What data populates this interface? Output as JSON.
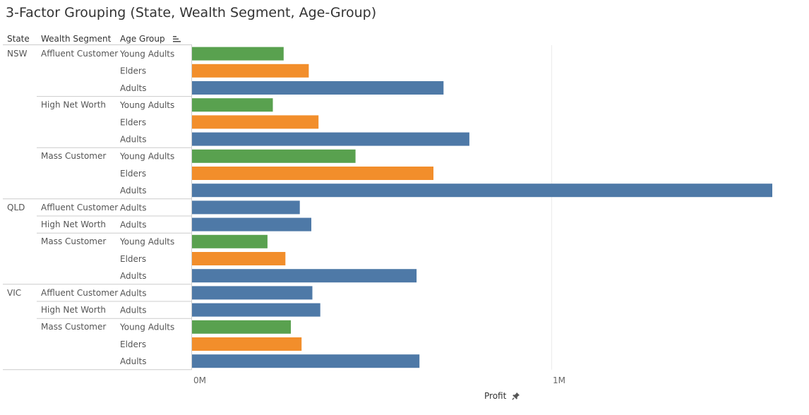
{
  "title": "3-Factor Grouping (State, Wealth Segment, Age-Group)",
  "headers": {
    "state": "State",
    "wealth_segment": "Wealth Segment",
    "age_group": "Age Group"
  },
  "icons": {
    "sort": "sort-descending-icon",
    "pin": "pin-icon"
  },
  "colors": {
    "Young Adults": "#59a14f",
    "Elders": "#f28e2b",
    "Adults": "#4e79a7"
  },
  "chart_data": {
    "type": "bar",
    "orientation": "horizontal",
    "xlabel": "Profit",
    "xlim": [
      0,
      1.65
    ],
    "x_unit": "M",
    "ticks": [
      {
        "value": 0,
        "label": "0M"
      },
      {
        "value": 1,
        "label": "1M"
      }
    ],
    "grid": true,
    "groups": [
      {
        "state": "NSW",
        "segments": [
          {
            "segment": "Affluent Customer",
            "bars": [
              {
                "age_group": "Young Adults",
                "value": 0.255
              },
              {
                "age_group": "Elders",
                "value": 0.325
              },
              {
                "age_group": "Adults",
                "value": 0.7
              }
            ]
          },
          {
            "segment": "High Net Worth",
            "bars": [
              {
                "age_group": "Young Adults",
                "value": 0.225
              },
              {
                "age_group": "Elders",
                "value": 0.352
              },
              {
                "age_group": "Adults",
                "value": 0.772
              }
            ]
          },
          {
            "segment": "Mass Customer",
            "bars": [
              {
                "age_group": "Young Adults",
                "value": 0.455
              },
              {
                "age_group": "Elders",
                "value": 0.672
              },
              {
                "age_group": "Adults",
                "value": 1.615
              }
            ]
          }
        ]
      },
      {
        "state": "QLD",
        "segments": [
          {
            "segment": "Affluent Customer",
            "bars": [
              {
                "age_group": "Adults",
                "value": 0.3
              }
            ]
          },
          {
            "segment": "High Net Worth",
            "bars": [
              {
                "age_group": "Adults",
                "value": 0.332
              }
            ]
          },
          {
            "segment": "Mass Customer",
            "bars": [
              {
                "age_group": "Young Adults",
                "value": 0.21
              },
              {
                "age_group": "Elders",
                "value": 0.26
              },
              {
                "age_group": "Adults",
                "value": 0.625
              }
            ]
          }
        ]
      },
      {
        "state": "VIC",
        "segments": [
          {
            "segment": "Affluent Customer",
            "bars": [
              {
                "age_group": "Adults",
                "value": 0.335
              }
            ]
          },
          {
            "segment": "High Net Worth",
            "bars": [
              {
                "age_group": "Adults",
                "value": 0.357
              }
            ]
          },
          {
            "segment": "Mass Customer",
            "bars": [
              {
                "age_group": "Young Adults",
                "value": 0.275
              },
              {
                "age_group": "Elders",
                "value": 0.305
              },
              {
                "age_group": "Adults",
                "value": 0.633
              }
            ]
          }
        ]
      }
    ]
  }
}
